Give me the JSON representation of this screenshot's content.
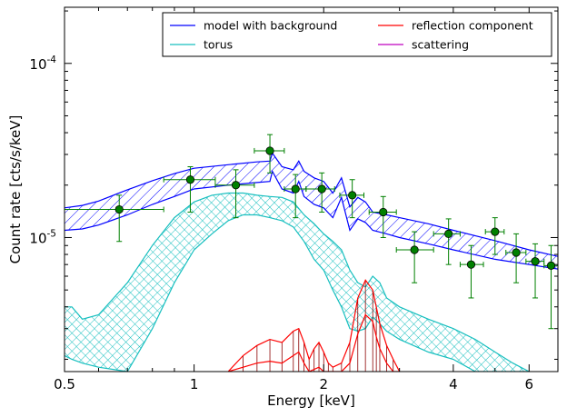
{
  "chart_data": {
    "type": "line",
    "title": "",
    "xlabel": "Energy [keV]",
    "ylabel": "Count rate [cts/s/keV]",
    "xscale": "log",
    "yscale": "log",
    "xlim": [
      0.5,
      7.0
    ],
    "ylim": [
      1.7e-06,
      0.00021
    ],
    "xticks": [
      {
        "value": 0.5,
        "label": "0.5"
      },
      {
        "value": 1,
        "label": "1"
      },
      {
        "value": 2,
        "label": "2"
      },
      {
        "value": 4,
        "label": "4"
      },
      {
        "value": 6,
        "label": "6"
      }
    ],
    "yticks": [
      {
        "value": 1e-05,
        "base": "10",
        "exp": "-5"
      },
      {
        "value": 0.0001,
        "base": "10",
        "exp": "-4"
      }
    ],
    "legend": {
      "placement": "top-right",
      "columns": 2,
      "entries": [
        {
          "label": "model with background",
          "color": "#0000ff"
        },
        {
          "label": "torus",
          "color": "#17bfbf"
        },
        {
          "label": "reflection component",
          "color": "#ff0000"
        },
        {
          "label": "scattering",
          "color": "#bf00bf"
        }
      ]
    },
    "series": [
      {
        "name": "model with background",
        "color": "#0000ff",
        "x": [
          0.5,
          0.55,
          0.6,
          0.7,
          0.8,
          0.9,
          1.0,
          1.2,
          1.4,
          1.5,
          1.52,
          1.6,
          1.7,
          1.75,
          1.8,
          1.9,
          2.0,
          2.1,
          2.2,
          2.3,
          2.4,
          2.5,
          2.6,
          2.8,
          3.0,
          3.5,
          4.0,
          5.0,
          6.0,
          7.0
        ],
        "upper": [
          1.48e-05,
          1.53e-05,
          1.62e-05,
          1.88e-05,
          2.12e-05,
          2.33e-05,
          2.5e-05,
          2.62e-05,
          2.72e-05,
          2.75e-05,
          3.05e-05,
          2.55e-05,
          2.45e-05,
          2.75e-05,
          2.4e-05,
          2.2e-05,
          2.1e-05,
          1.8e-05,
          2.2e-05,
          1.5e-05,
          1.7e-05,
          1.6e-05,
          1.4e-05,
          1.35e-05,
          1.3e-05,
          1.2e-05,
          1.1e-05,
          9.6e-06,
          8.5e-06,
          7.8e-06
        ],
        "lower": [
          1.1e-05,
          1.12e-05,
          1.18e-05,
          1.35e-05,
          1.55e-05,
          1.72e-05,
          1.9e-05,
          2e-05,
          2.07e-05,
          2.1e-05,
          2.4e-05,
          1.9e-05,
          1.8e-05,
          2.1e-05,
          1.72e-05,
          1.55e-05,
          1.48e-05,
          1.3e-05,
          1.7e-05,
          1.1e-05,
          1.28e-05,
          1.22e-05,
          1.1e-05,
          1.05e-05,
          1e-05,
          9.2e-06,
          8.5e-06,
          7.5e-06,
          7e-06,
          6.6e-06
        ]
      },
      {
        "name": "torus",
        "color": "#17bfbf",
        "x": [
          0.5,
          0.52,
          0.55,
          0.6,
          0.7,
          0.8,
          0.9,
          1.0,
          1.1,
          1.2,
          1.3,
          1.4,
          1.5,
          1.6,
          1.7,
          1.8,
          1.9,
          2.0,
          2.1,
          2.2,
          2.3,
          2.4,
          2.5,
          2.6,
          2.7,
          2.8,
          3.0,
          3.5,
          4.0,
          4.5,
          5.0,
          5.5,
          6.0
        ],
        "upper": [
          4e-06,
          4e-06,
          3.4e-06,
          3.6e-06,
          5.5e-06,
          9e-06,
          1.3e-05,
          1.6e-05,
          1.75e-05,
          1.8e-05,
          1.8e-05,
          1.75e-05,
          1.72e-05,
          1.7e-05,
          1.6e-05,
          1.35e-05,
          1.2e-05,
          1.05e-05,
          9.5e-06,
          8.5e-06,
          6.5e-06,
          5.5e-06,
          5.2e-06,
          6e-06,
          5.5e-06,
          4.5e-06,
          4e-06,
          3.4e-06,
          3e-06,
          2.6e-06,
          2.2e-06,
          1.9e-06,
          1.7e-06
        ],
        "lower": [
          2.1e-06,
          2e-06,
          1.9e-06,
          1.8e-06,
          1.7e-06,
          3e-06,
          5.5e-06,
          8.5e-06,
          1.05e-05,
          1.25e-05,
          1.35e-05,
          1.35e-05,
          1.3e-05,
          1.25e-05,
          1.15e-05,
          9.5e-06,
          7.5e-06,
          6.5e-06,
          5e-06,
          4e-06,
          3e-06,
          2.9e-06,
          3e-06,
          3.5e-06,
          3.2e-06,
          2.9e-06,
          2.6e-06,
          2.2e-06,
          2e-06,
          1.7e-06,
          1.7e-06,
          1.7e-06,
          1.7e-06
        ]
      },
      {
        "name": "reflection component",
        "color": "#ff0000",
        "x": [
          1.2,
          1.3,
          1.4,
          1.5,
          1.6,
          1.7,
          1.75,
          1.8,
          1.85,
          1.9,
          1.95,
          2.0,
          2.05,
          2.1,
          2.2,
          2.3,
          2.4,
          2.5,
          2.6,
          2.65,
          2.7,
          2.8,
          2.9,
          3.0
        ],
        "upper": [
          1.7e-06,
          2.1e-06,
          2.4e-06,
          2.6e-06,
          2.5e-06,
          2.9e-06,
          3e-06,
          2.5e-06,
          2e-06,
          2.3e-06,
          2.5e-06,
          2.2e-06,
          1.9e-06,
          1.8e-06,
          1.9e-06,
          2.5e-06,
          4.5e-06,
          5.7e-06,
          5e-06,
          4e-06,
          3.2e-06,
          2.4e-06,
          2e-06,
          1.7e-06
        ],
        "lower": [
          1.7e-06,
          1.8e-06,
          1.9e-06,
          1.95e-06,
          1.9e-06,
          2.1e-06,
          2.2e-06,
          1.9e-06,
          1.7e-06,
          1.75e-06,
          1.8e-06,
          1.7e-06,
          1.7e-06,
          1.7e-06,
          1.7e-06,
          1.9e-06,
          2.8e-06,
          3.6e-06,
          3.3e-06,
          2.7e-06,
          2.3e-06,
          1.9e-06,
          1.7e-06,
          1.7e-06
        ]
      }
    ],
    "data_points": {
      "color": "#008000",
      "points": [
        {
          "x": 0.67,
          "y": 1.45e-05,
          "xlo": 0.5,
          "xhi": 0.85,
          "ylo": 9.5e-06,
          "yhi": 1.75e-05
        },
        {
          "x": 0.98,
          "y": 2.15e-05,
          "xlo": 0.85,
          "xhi": 1.12,
          "ylo": 1.4e-05,
          "yhi": 2.55e-05
        },
        {
          "x": 1.25,
          "y": 2e-05,
          "xlo": 1.12,
          "xhi": 1.38,
          "ylo": 1.3e-05,
          "yhi": 2.45e-05
        },
        {
          "x": 1.5,
          "y": 3.15e-05,
          "xlo": 1.38,
          "xhi": 1.62,
          "ylo": 2.35e-05,
          "yhi": 3.9e-05
        },
        {
          "x": 1.72,
          "y": 1.9e-05,
          "xlo": 1.62,
          "xhi": 1.82,
          "ylo": 1.3e-05,
          "yhi": 2.3e-05
        },
        {
          "x": 1.98,
          "y": 1.9e-05,
          "xlo": 1.82,
          "xhi": 2.12,
          "ylo": 1.4e-05,
          "yhi": 2.35e-05
        },
        {
          "x": 2.33,
          "y": 1.75e-05,
          "xlo": 2.18,
          "xhi": 2.48,
          "ylo": 1.3e-05,
          "yhi": 2.15e-05
        },
        {
          "x": 2.75,
          "y": 1.4e-05,
          "xlo": 2.55,
          "xhi": 2.95,
          "ylo": 1e-05,
          "yhi": 1.72e-05
        },
        {
          "x": 3.25,
          "y": 8.5e-06,
          "xlo": 2.95,
          "xhi": 3.6,
          "ylo": 5.5e-06,
          "yhi": 1.08e-05
        },
        {
          "x": 3.9,
          "y": 1.05e-05,
          "xlo": 3.6,
          "xhi": 4.15,
          "ylo": 7e-06,
          "yhi": 1.28e-05
        },
        {
          "x": 4.4,
          "y": 7e-06,
          "xlo": 4.15,
          "xhi": 4.7,
          "ylo": 4.5e-06,
          "yhi": 9e-06
        },
        {
          "x": 5.0,
          "y": 1.08e-05,
          "xlo": 4.75,
          "xhi": 5.25,
          "ylo": 8e-06,
          "yhi": 1.3e-05
        },
        {
          "x": 5.6,
          "y": 8.2e-06,
          "xlo": 5.3,
          "xhi": 5.9,
          "ylo": 5.5e-06,
          "yhi": 1.05e-05
        },
        {
          "x": 6.2,
          "y": 7.3e-06,
          "xlo": 5.9,
          "xhi": 6.5,
          "ylo": 4.5e-06,
          "yhi": 9.2e-06
        },
        {
          "x": 6.75,
          "y": 6.9e-06,
          "xlo": 6.5,
          "xhi": 7.0,
          "ylo": 3e-06,
          "yhi": 9e-06
        }
      ]
    },
    "grid": false
  }
}
